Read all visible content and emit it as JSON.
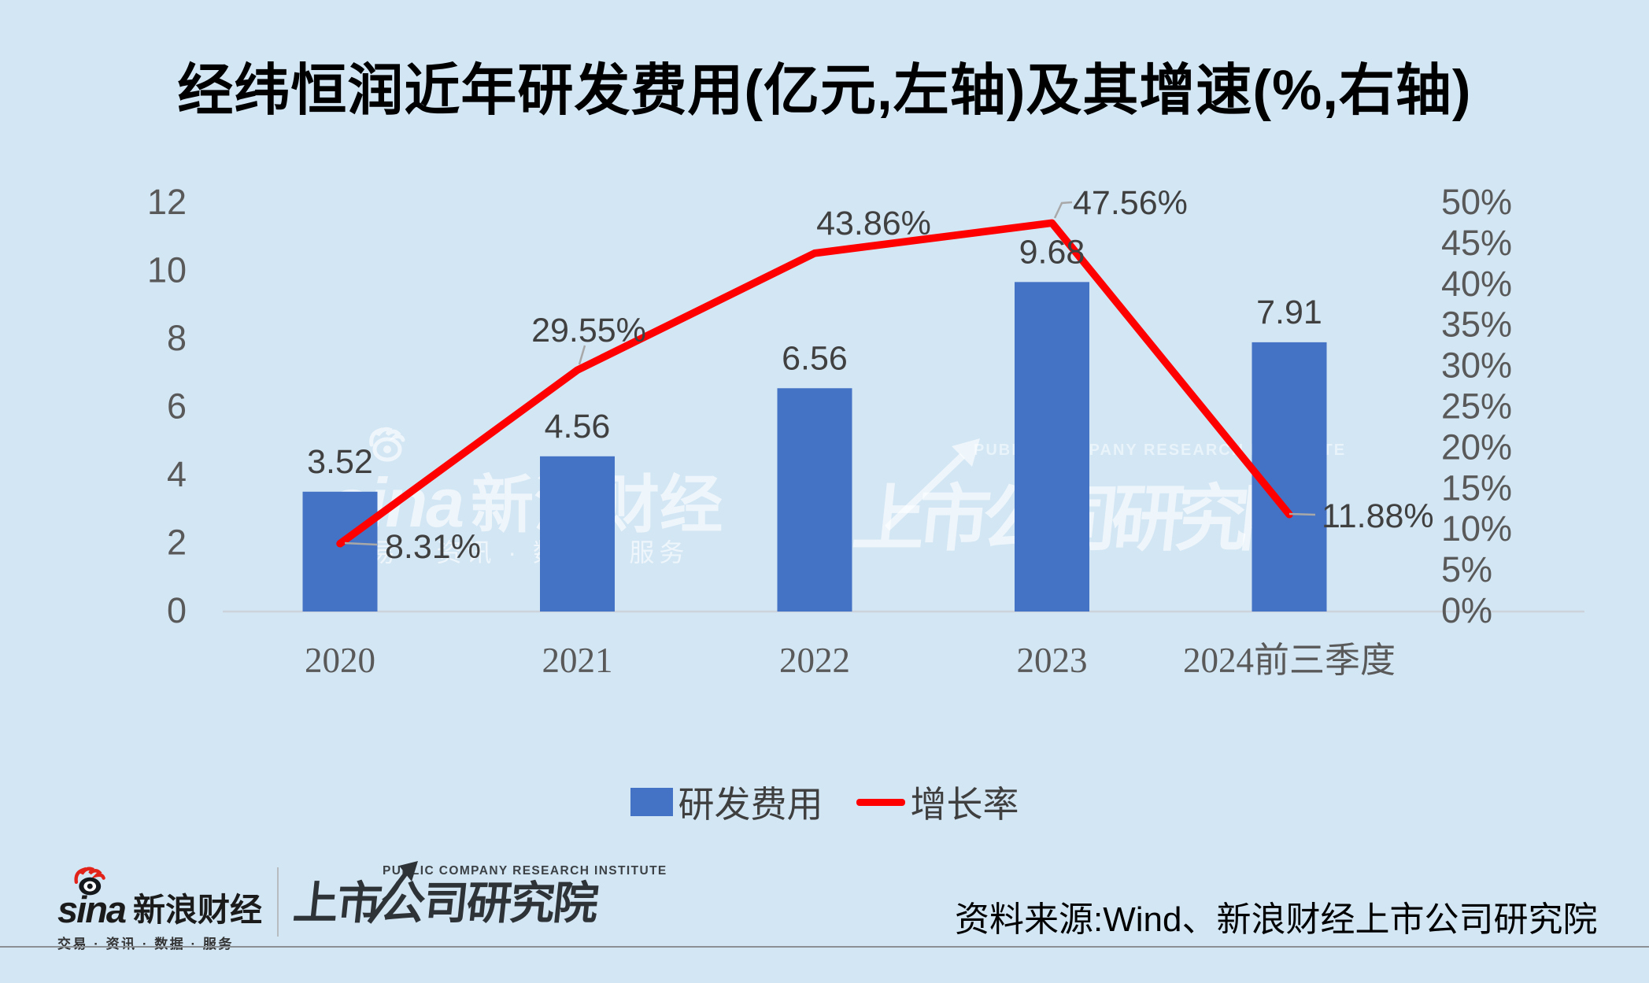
{
  "title": "经纬恒润近年研发费用(亿元,左轴)及其增速(%,右轴)",
  "chart_data": {
    "type": "bar",
    "subtype": "bar+line-dual-axis",
    "categories": [
      "2020",
      "2021",
      "2022",
      "2023",
      "2024前三季度"
    ],
    "series": [
      {
        "name": "研发费用",
        "type": "bar",
        "axis": "left",
        "values": [
          3.52,
          4.56,
          6.56,
          9.68,
          7.91
        ],
        "labels": [
          "3.52",
          "4.56",
          "6.56",
          "9.68",
          "7.91"
        ],
        "color": "#4472C4"
      },
      {
        "name": "增长率",
        "type": "line",
        "axis": "right",
        "values": [
          8.31,
          29.55,
          43.86,
          47.56,
          11.88
        ],
        "labels": [
          "8.31%",
          "29.55%",
          "43.86%",
          "47.56%",
          "11.88%"
        ],
        "color": "#FF0000"
      }
    ],
    "left_axis": {
      "min": 0,
      "max": 12,
      "step": 2,
      "ticks": [
        "0",
        "2",
        "4",
        "6",
        "8",
        "10",
        "12"
      ]
    },
    "right_axis": {
      "min": 0,
      "max": 50,
      "step": 5,
      "ticks": [
        "0%",
        "5%",
        "10%",
        "15%",
        "20%",
        "25%",
        "30%",
        "35%",
        "40%",
        "45%",
        "50%"
      ]
    },
    "legend": [
      {
        "label": "研发费用",
        "marker": "bar",
        "color": "#4472C4"
      },
      {
        "label": "增长率",
        "marker": "line",
        "color": "#FF0000"
      }
    ],
    "legend_position": "bottom",
    "grid": false
  },
  "watermarks": {
    "sina": {
      "brand": "sina",
      "brand_cn": "新浪财经",
      "tagline": "交易 · 资讯 · 数据 · 服务"
    },
    "pcri": {
      "name": "上市公司研究院",
      "english": "PUBLIC COMPANY RESEARCH INSTITUTE"
    }
  },
  "footer": {
    "sina_logo": {
      "brand": "sina",
      "brand_cn": "新浪财经",
      "tagline": "交易 · 资讯 · 数据 · 服务"
    },
    "pcri_logo": {
      "name": "上市公司研究院",
      "english": "PUBLIC COMPANY RESEARCH INSTITUTE"
    },
    "source": "资料来源:Wind、新浪财经上市公司研究院"
  },
  "colors": {
    "background": "#d3e6f4",
    "bar": "#4472C4",
    "line": "#FF0000",
    "axis_text": "#595959",
    "data_label": "#404040",
    "axis_line": "#ccd3da",
    "leader_line": "#a8a8a8",
    "sina_red": "#E2231A",
    "logo_dark": "#2E3338"
  }
}
